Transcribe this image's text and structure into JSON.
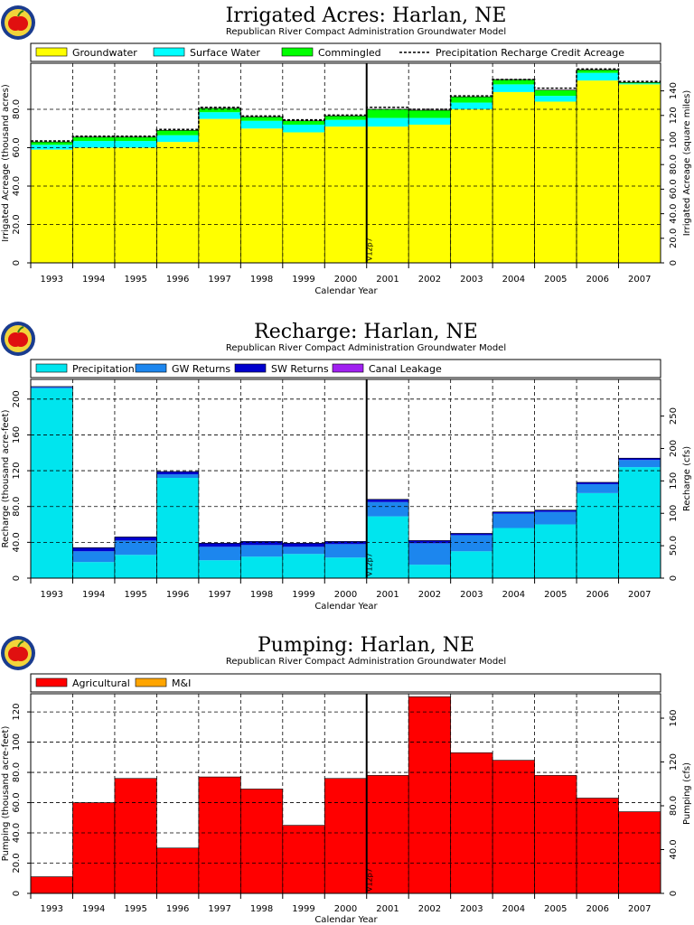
{
  "chart_data": [
    {
      "type": "area",
      "title": "Irrigated Acres: Harlan, NE",
      "subtitle": "Republican River Compact Administration Groundwater Model",
      "xlabel": "Calendar Year",
      "ylabel": "Irrigated Acreage (thousand acres)",
      "y2label": "Irrigated Acreage (square miles)",
      "categories": [
        "1993",
        "1994",
        "1995",
        "1996",
        "1997",
        "1998",
        "1999",
        "2000",
        "2001",
        "2002",
        "2003",
        "2004",
        "2005",
        "2006",
        "2007"
      ],
      "ylim": [
        0,
        104
      ],
      "yticks": [
        0,
        20.0,
        40.0,
        60.0,
        80.0
      ],
      "y2ticks": [
        0,
        20.0,
        40.0,
        60.0,
        80.0,
        100,
        120,
        140
      ],
      "y2_per_y": 1.5625,
      "stacked": true,
      "series": [
        {
          "name": "Groundwater",
          "color": "#ffff00",
          "values": [
            59,
            60,
            60,
            63,
            75,
            70,
            68,
            71,
            71,
            72,
            80,
            89,
            84,
            95,
            93
          ]
        },
        {
          "name": "Surface Water",
          "color": "#00ffff",
          "values": [
            2.5,
            3.5,
            3.5,
            3.5,
            3.5,
            4,
            4,
            3.5,
            4.5,
            3.5,
            3.5,
            4,
            3,
            4,
            0.5
          ]
        },
        {
          "name": "Commingled",
          "color": "#00ff00",
          "values": [
            1.5,
            2,
            2,
            2.5,
            2,
            2,
            2,
            2,
            4.5,
            4,
            3,
            2.5,
            3,
            1.5,
            0.5
          ]
        }
      ],
      "line_series": {
        "name": "Precipitation Recharge Credit Acreage",
        "values": [
          63.5,
          66,
          66,
          69.5,
          81,
          76.5,
          74.5,
          77,
          81,
          80,
          87,
          95.5,
          91,
          101,
          94.5
        ]
      },
      "annotation": "V12p7",
      "divider_after": "2000"
    },
    {
      "type": "area",
      "title": "Recharge: Harlan, NE",
      "subtitle": "Republican River Compact Administration Groundwater Model",
      "xlabel": "Calendar Year",
      "ylabel": "Recharge (thousand acre-feet)",
      "y2label": "Recharge (cfs)",
      "categories": [
        "1993",
        "1994",
        "1995",
        "1996",
        "1997",
        "1998",
        "1999",
        "2000",
        "2001",
        "2002",
        "2003",
        "2004",
        "2005",
        "2006",
        "2007"
      ],
      "ylim": [
        0,
        222
      ],
      "yticks": [
        0,
        40.0,
        80.0,
        120,
        160,
        200
      ],
      "y2ticks": [
        0,
        50.0,
        100,
        150,
        200,
        250
      ],
      "y2_per_y": 1.381,
      "stacked": true,
      "series": [
        {
          "name": "Precipitation",
          "color": "#00e5ee",
          "values": [
            212,
            18,
            26,
            112,
            20,
            24,
            27,
            23,
            69,
            15,
            30,
            56,
            60,
            95,
            124
          ]
        },
        {
          "name": "GW Returns",
          "color": "#1c86ee",
          "values": [
            1.5,
            12,
            16,
            4,
            15,
            13,
            8,
            15,
            16,
            24,
            18,
            16,
            14,
            10,
            8
          ]
        },
        {
          "name": "SW Returns",
          "color": "#0000cd",
          "values": [
            0.5,
            4,
            4,
            3,
            4,
            4,
            4,
            3,
            3,
            3,
            2,
            2,
            2,
            2,
            2
          ]
        },
        {
          "name": "Canal Leakage",
          "color": "#a020f0",
          "values": [
            0,
            0,
            0,
            0,
            0,
            0,
            0,
            0,
            0,
            0,
            0,
            0,
            0,
            0,
            0
          ]
        }
      ],
      "annotation": "V12p7",
      "divider_after": "2000"
    },
    {
      "type": "area",
      "title": "Pumping: Harlan, NE",
      "subtitle": "Republican River Compact Administration Groundwater Model",
      "xlabel": "Calendar Year",
      "ylabel": "Pumping (thousand acre-feet)",
      "y2label": "Pumping (cfs)",
      "categories": [
        "1993",
        "1994",
        "1995",
        "1996",
        "1997",
        "1998",
        "1999",
        "2000",
        "2001",
        "2002",
        "2003",
        "2004",
        "2005",
        "2006",
        "2007"
      ],
      "ylim": [
        0,
        132
      ],
      "yticks": [
        0,
        20.0,
        40.0,
        60.0,
        80.0,
        100,
        120
      ],
      "y2ticks": [
        0,
        40.0,
        80.0,
        120,
        160
      ],
      "y2_per_y": 1.381,
      "stacked": true,
      "series": [
        {
          "name": "Agricultural",
          "color": "#ff0000",
          "values": [
            11,
            60,
            76,
            30,
            77,
            69,
            45,
            76,
            78,
            130,
            93,
            88,
            78,
            63,
            54
          ]
        },
        {
          "name": "M&I",
          "color": "#ffa500",
          "values": [
            0,
            0,
            0,
            0,
            0,
            0,
            0,
            0,
            0,
            0,
            0,
            0,
            0,
            0,
            0
          ]
        }
      ],
      "annotation": "V12p7",
      "divider_after": "2000"
    }
  ]
}
